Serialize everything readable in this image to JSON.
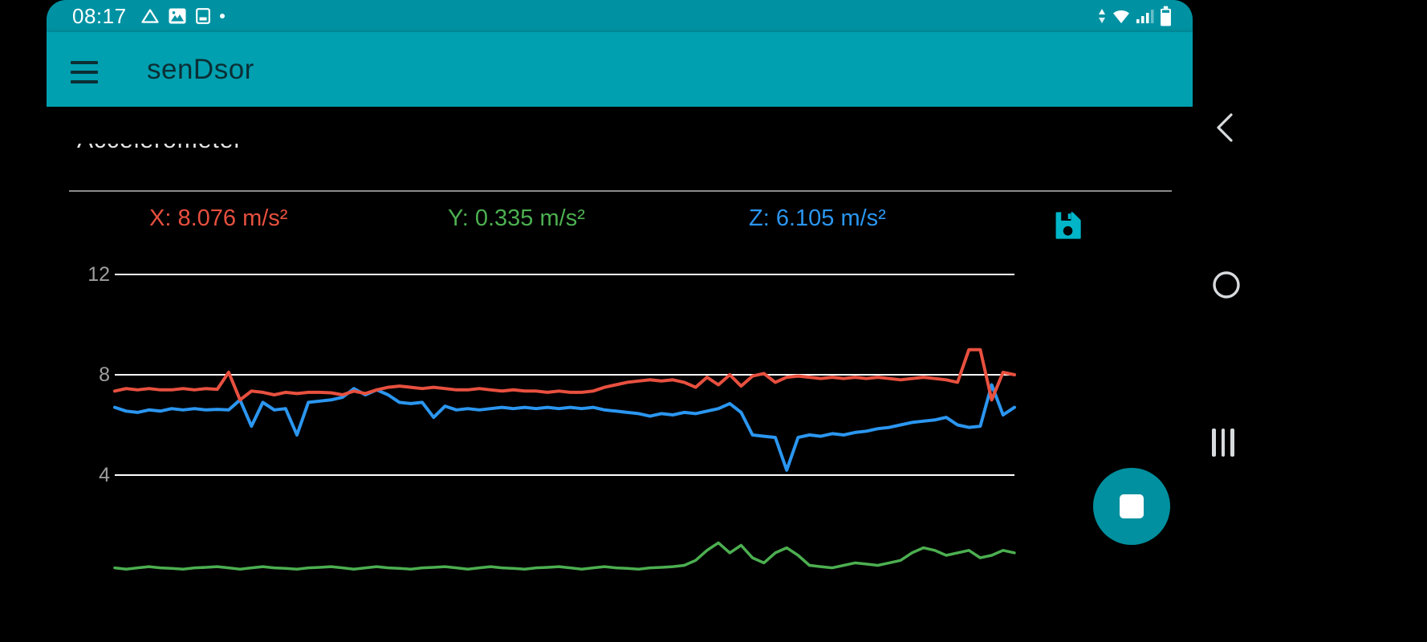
{
  "colors": {
    "status-bar": "#0092a2",
    "app-bar": "#00a0b0",
    "app-bar-text": "#0b2f35",
    "fab": "#00909f",
    "save-icon": "#00b5c8",
    "nav-icon": "#d7dbde",
    "grid": "#ffffff",
    "tick-label": "#9e9e9e",
    "divider": "#8a8a8a",
    "clipped-text": "#e6e6e6"
  },
  "status_bar": {
    "time": "08:17",
    "left_icons": [
      "drive-icon",
      "image-icon",
      "screenshot-icon",
      "notification-dot-icon"
    ],
    "right_icons": [
      "data-arrows-icon",
      "wifi-icon",
      "signal-icon",
      "battery-icon"
    ]
  },
  "app_bar": {
    "title": "senDsor",
    "menu_icon": "hamburger-icon"
  },
  "sensor_header": {
    "clipped_text": "Accelerometer"
  },
  "legend": {
    "x": {
      "label": "X: 8.076 m/s²",
      "color": "#e8503f"
    },
    "y": {
      "label": "Y: 0.335 m/s²",
      "color": "#4caf50"
    },
    "z": {
      "label": "Z: 6.105 m/s²",
      "color": "#2b96f0"
    }
  },
  "save_button": {
    "icon": "floppy-save-icon"
  },
  "chart_data": {
    "type": "line",
    "y_ticks": [
      12,
      8,
      4
    ],
    "ytick_labels": [
      "12",
      "8",
      "4"
    ],
    "ylim": [
      0,
      13
    ],
    "grid": "horizontal",
    "grid_color": "#ffffff",
    "legend_position": "top",
    "series": [
      {
        "name": "X",
        "unit": "m/s²",
        "current_value": 8.076,
        "color": "#e8503f",
        "width": 4,
        "values": [
          7.35,
          7.45,
          7.4,
          7.45,
          7.4,
          7.4,
          7.45,
          7.4,
          7.45,
          7.42,
          8.1,
          7.0,
          7.35,
          7.3,
          7.2,
          7.3,
          7.25,
          7.3,
          7.3,
          7.28,
          7.2,
          7.35,
          7.25,
          7.4,
          7.5,
          7.55,
          7.5,
          7.45,
          7.5,
          7.45,
          7.4,
          7.4,
          7.45,
          7.4,
          7.35,
          7.4,
          7.35,
          7.35,
          7.3,
          7.35,
          7.3,
          7.3,
          7.35,
          7.5,
          7.6,
          7.7,
          7.75,
          7.8,
          7.75,
          7.8,
          7.7,
          7.5,
          7.9,
          7.6,
          8.0,
          7.55,
          7.95,
          8.05,
          7.7,
          7.9,
          7.95,
          7.9,
          7.85,
          7.9,
          7.85,
          7.9,
          7.85,
          7.9,
          7.85,
          7.8,
          7.85,
          7.9,
          7.85,
          7.8,
          7.7,
          9.0,
          9.0,
          7.0,
          8.1,
          8.0
        ]
      },
      {
        "name": "Y",
        "unit": "m/s²",
        "current_value": 0.335,
        "color": "#4caf50",
        "width": 3.5,
        "values": [
          0.3,
          0.25,
          0.3,
          0.35,
          0.3,
          0.28,
          0.25,
          0.3,
          0.32,
          0.35,
          0.3,
          0.25,
          0.3,
          0.35,
          0.3,
          0.28,
          0.25,
          0.3,
          0.32,
          0.35,
          0.3,
          0.25,
          0.3,
          0.35,
          0.3,
          0.28,
          0.25,
          0.3,
          0.32,
          0.35,
          0.3,
          0.25,
          0.3,
          0.35,
          0.3,
          0.28,
          0.25,
          0.3,
          0.32,
          0.35,
          0.3,
          0.25,
          0.3,
          0.35,
          0.3,
          0.28,
          0.25,
          0.3,
          0.32,
          0.35,
          0.4,
          0.6,
          1.0,
          1.3,
          0.9,
          1.2,
          0.7,
          0.5,
          0.9,
          1.1,
          0.8,
          0.4,
          0.35,
          0.3,
          0.4,
          0.5,
          0.45,
          0.4,
          0.5,
          0.6,
          0.9,
          1.1,
          1.0,
          0.8,
          0.9,
          1.0,
          0.7,
          0.8,
          1.0,
          0.9
        ]
      },
      {
        "name": "Z",
        "unit": "m/s²",
        "current_value": 6.105,
        "color": "#2b96f0",
        "width": 4,
        "values": [
          6.7,
          6.55,
          6.5,
          6.6,
          6.55,
          6.65,
          6.6,
          6.65,
          6.6,
          6.62,
          6.6,
          7.0,
          5.95,
          6.9,
          6.6,
          6.65,
          5.6,
          6.9,
          6.95,
          7.0,
          7.1,
          7.45,
          7.2,
          7.4,
          7.2,
          6.9,
          6.85,
          6.9,
          6.3,
          6.75,
          6.6,
          6.65,
          6.6,
          6.65,
          6.7,
          6.65,
          6.7,
          6.65,
          6.7,
          6.65,
          6.7,
          6.65,
          6.7,
          6.6,
          6.55,
          6.5,
          6.45,
          6.35,
          6.45,
          6.4,
          6.5,
          6.45,
          6.55,
          6.65,
          6.85,
          6.5,
          5.6,
          5.55,
          5.5,
          4.2,
          5.5,
          5.6,
          5.55,
          5.65,
          5.6,
          5.7,
          5.75,
          5.85,
          5.9,
          6.0,
          6.1,
          6.15,
          6.2,
          6.3,
          6.0,
          5.9,
          5.95,
          7.6,
          6.4,
          6.7
        ]
      }
    ]
  },
  "fab": {
    "action": "stop"
  },
  "nav_bar": {
    "buttons": [
      {
        "name": "back"
      },
      {
        "name": "home"
      },
      {
        "name": "recents"
      }
    ]
  }
}
